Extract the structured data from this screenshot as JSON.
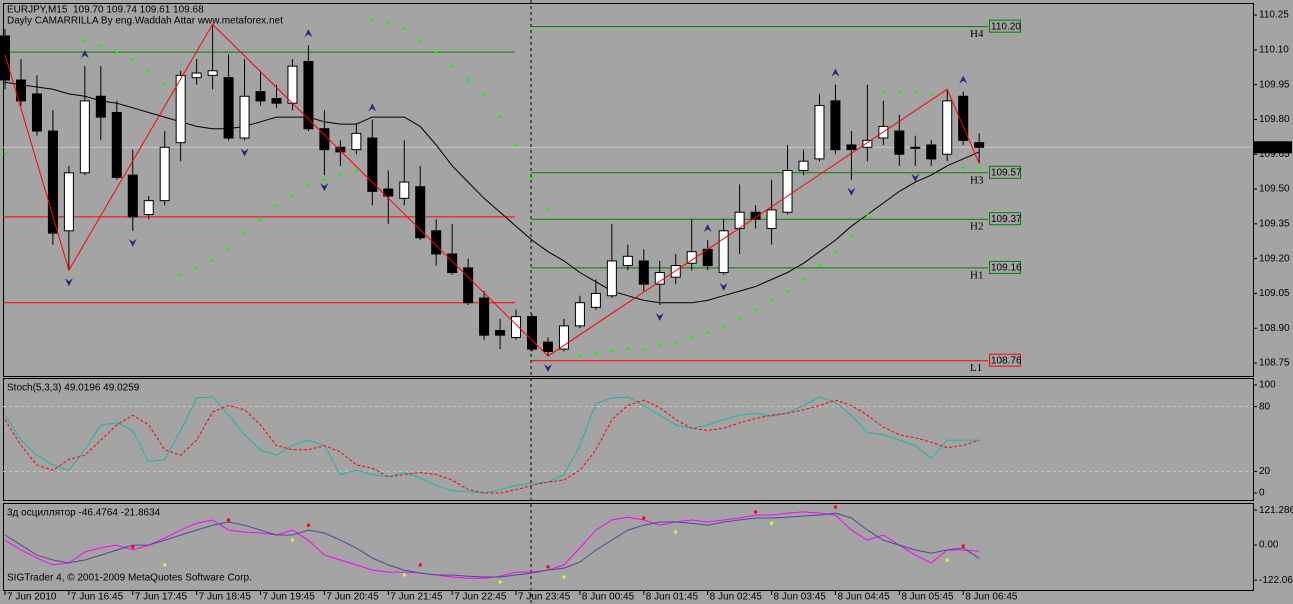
{
  "chart_data": [
    {
      "type": "candlestick",
      "title": "EURJPY,M15  109.70 109.74 109.61 109.68",
      "subtitle": "Dayly CAMARRILLA By eng.Waddah Attar www.metaforex.net",
      "categories": [
        "7 Jun 2010",
        null,
        null,
        null,
        "7 Jun 16:45",
        null,
        null,
        null,
        "7 Jun 17:45",
        null,
        null,
        null,
        "7 Jun 18:45",
        null,
        null,
        null,
        "7 Jun 19:45",
        null,
        null,
        null,
        "7 Jun 20:45",
        null,
        null,
        null,
        "7 Jun 21:45",
        null,
        null,
        null,
        "7 Jun 22:45",
        null,
        null,
        null,
        "7 Jun 23:45",
        null,
        null,
        null,
        "8 Jun 00:45",
        null,
        null,
        null,
        "8 Jun 01:45",
        null,
        null,
        null,
        "8 Jun 02:45",
        null,
        null,
        null,
        "8 Jun 03:45",
        null,
        null,
        null,
        "8 Jun 04:45",
        null,
        null,
        null,
        "8 Jun 05:45",
        null,
        null,
        null,
        "8 Jun 06:45",
        null
      ],
      "open": [
        110.16,
        109.97,
        109.91,
        109.75,
        109.32,
        109.57,
        109.9,
        109.83,
        109.56,
        109.39,
        109.45,
        109.7,
        109.98,
        109.99,
        109.98,
        109.72,
        109.92,
        109.89,
        109.87,
        110.05,
        109.76,
        109.68,
        109.67,
        109.72,
        109.5,
        109.46,
        109.51,
        109.32,
        109.22,
        109.16,
        109.03,
        108.89,
        108.86,
        108.95,
        108.84,
        108.81,
        108.91,
        108.99,
        109.04,
        109.17,
        109.19,
        109.09,
        109.12,
        109.18,
        109.24,
        109.14,
        109.33,
        109.4,
        109.33,
        109.4,
        109.58,
        109.63,
        109.88,
        109.69,
        109.68,
        109.72,
        109.75,
        109.68,
        109.69,
        109.65,
        109.9,
        109.7
      ],
      "high": [
        110.19,
        110.06,
        109.99,
        109.84,
        109.6,
        110.03,
        110.03,
        109.88,
        109.67,
        109.47,
        109.75,
        110.01,
        110.06,
        110.21,
        110.08,
        110.06,
        110.01,
        109.95,
        110.06,
        110.12,
        109.84,
        109.71,
        109.78,
        109.8,
        109.58,
        109.71,
        109.6,
        109.37,
        109.35,
        109.2,
        109.06,
        108.94,
        108.98,
        108.96,
        108.86,
        108.94,
        109.04,
        109.11,
        109.35,
        109.26,
        109.24,
        109.19,
        109.22,
        109.37,
        109.28,
        109.37,
        109.52,
        109.43,
        109.54,
        109.69,
        109.67,
        109.91,
        109.95,
        109.75,
        109.95,
        109.88,
        109.82,
        109.73,
        109.71,
        109.93,
        109.92,
        109.74
      ],
      "low": [
        109.93,
        109.86,
        109.73,
        109.26,
        109.15,
        109.56,
        109.71,
        109.54,
        109.32,
        109.37,
        109.43,
        109.62,
        109.95,
        109.93,
        109.71,
        109.71,
        109.86,
        109.85,
        109.84,
        109.75,
        109.56,
        109.6,
        109.65,
        109.43,
        109.35,
        109.43,
        109.28,
        109.17,
        109.13,
        109.0,
        108.85,
        108.81,
        108.85,
        108.8,
        108.78,
        108.8,
        108.9,
        108.98,
        109.03,
        109.15,
        109.06,
        109.0,
        109.09,
        109.15,
        109.15,
        109.13,
        109.22,
        109.33,
        109.26,
        109.39,
        109.56,
        109.62,
        109.65,
        109.54,
        109.62,
        109.69,
        109.6,
        109.6,
        109.6,
        109.62,
        109.69,
        109.61
      ],
      "close": [
        109.97,
        109.88,
        109.75,
        109.31,
        109.57,
        109.88,
        109.81,
        109.55,
        109.38,
        109.45,
        109.68,
        109.99,
        110.0,
        110.01,
        109.72,
        109.9,
        109.88,
        109.87,
        110.03,
        109.76,
        109.67,
        109.66,
        109.74,
        109.49,
        109.47,
        109.53,
        109.29,
        109.22,
        109.14,
        109.01,
        108.87,
        108.87,
        108.95,
        108.81,
        108.8,
        108.91,
        109.01,
        109.05,
        109.19,
        109.21,
        109.09,
        109.14,
        109.17,
        109.23,
        109.17,
        109.32,
        109.4,
        109.37,
        109.41,
        109.58,
        109.62,
        109.86,
        109.67,
        109.67,
        109.71,
        109.77,
        109.65,
        109.68,
        109.63,
        109.88,
        109.71,
        109.68
      ],
      "ylim": [
        108.694,
        110.302
      ],
      "yticks": [
        110.25,
        {
          "value": 110.1,
          "label": "110.10"
        },
        109.95,
        {
          "value": 109.8,
          "label": "109.80"
        },
        109.65,
        {
          "value": 109.5,
          "label": "109.50"
        },
        109.35,
        {
          "value": 109.2,
          "label": "109.20"
        },
        109.05,
        {
          "value": 108.9,
          "label": "108.90"
        },
        108.75
      ],
      "last_price": 109.68,
      "ma": {
        "color": "#000000",
        "values": [
          109.96,
          109.95,
          109.94,
          109.93,
          109.91,
          109.9,
          109.88,
          109.87,
          109.85,
          109.83,
          109.81,
          109.79,
          109.77,
          109.76,
          109.76,
          109.77,
          109.79,
          109.81,
          109.81,
          109.81,
          109.79,
          109.78,
          109.78,
          109.81,
          109.81,
          109.81,
          109.77,
          109.69,
          109.6,
          109.53,
          109.46,
          109.4,
          109.34,
          109.28,
          109.23,
          109.19,
          109.14,
          109.1,
          109.06,
          109.04,
          109.02,
          109.01,
          109.01,
          109.01,
          109.02,
          109.04,
          109.06,
          109.08,
          109.11,
          109.14,
          109.18,
          109.23,
          109.28,
          109.34,
          109.39,
          109.44,
          109.49,
          109.53,
          109.56,
          109.6,
          109.63,
          109.66
        ]
      },
      "sar": {
        "color": "#00ff00",
        "values": [
          109.65,
          null,
          null,
          null,
          null,
          110.14,
          110.12,
          110.09,
          110.06,
          110.01,
          109.95,
          109.13,
          109.16,
          109.19,
          109.24,
          109.31,
          109.37,
          109.43,
          109.47,
          109.52,
          109.54,
          109.56,
          109.58,
          110.23,
          110.22,
          110.19,
          110.14,
          110.09,
          110.03,
          109.97,
          109.91,
          109.81,
          109.69,
          109.55,
          109.41,
          null,
          108.78,
          108.79,
          108.8,
          108.81,
          108.81,
          108.83,
          108.84,
          108.86,
          108.88,
          108.91,
          108.94,
          108.98,
          109.02,
          109.06,
          109.11,
          109.17,
          109.23,
          109.3,
          109.39,
          109.92,
          109.92,
          109.92,
          109.91,
          null,
          109.59,
          109.59
        ]
      },
      "zigzag": {
        "color": "#ff0000",
        "x": [
          0,
          4,
          13,
          34,
          59,
          61
        ],
        "values": [
          110.08,
          109.15,
          110.21,
          108.78,
          109.93,
          109.61
        ]
      },
      "fractals": {
        "color": "#1c2a78",
        "up": [
          5,
          19,
          23,
          44,
          52,
          60
        ],
        "down": [
          4,
          8,
          15,
          20,
          34,
          41,
          45,
          53,
          57
        ]
      },
      "prev_levels": {
        "values": [
          110.09,
          109.38,
          109.01
        ],
        "colors": [
          "#008000",
          "#ff0000",
          "#ff0000"
        ]
      },
      "levels": {
        "names": [
          "H4",
          "H3",
          "H2",
          "H1",
          "L1"
        ],
        "values": [
          110.2,
          109.57,
          109.37,
          109.16,
          108.76
        ],
        "value_labels": [
          "110.20",
          "109.57",
          "109.37",
          "109.16",
          "108.76"
        ],
        "colors": [
          "#008000",
          "#008000",
          "#008000",
          "#008000",
          "#ff0000"
        ]
      },
      "separator": 33
    },
    {
      "type": "line",
      "title": "Stoch(5,3,3) 49.0196 49.0259",
      "ylim": [
        -6.5,
        106.5
      ],
      "yticks": [
        100,
        80,
        20,
        0
      ],
      "levels": [
        80,
        20
      ],
      "series": [
        {
          "color": "#20b2aa",
          "values": [
            72,
            49,
            35,
            26,
            21,
            40,
            63,
            65,
            58,
            29,
            31,
            58,
            88,
            89,
            72,
            54,
            40,
            35,
            44,
            49,
            44,
            17,
            21,
            17,
            15,
            19,
            14,
            7,
            2,
            1,
            0,
            3,
            7,
            9,
            10,
            17,
            44,
            83,
            88,
            89,
            81,
            72,
            63,
            60,
            63,
            68,
            72,
            74,
            71,
            74,
            81,
            89,
            84,
            72,
            56,
            54,
            49,
            44,
            32,
            49,
            49,
            49
          ]
        },
        {
          "color": "#ff0000",
          "dashed": true,
          "values": [
            68,
            44,
            26,
            21,
            31,
            35,
            49,
            63,
            72,
            63,
            40,
            35,
            49,
            75,
            81,
            77,
            63,
            44,
            40,
            40,
            44,
            38,
            26,
            23,
            15,
            17,
            19,
            17,
            12,
            3,
            0,
            0,
            3,
            7,
            10,
            12,
            21,
            40,
            68,
            81,
            86,
            79,
            68,
            60,
            58,
            60,
            65,
            69,
            72,
            74,
            77,
            81,
            86,
            81,
            72,
            61,
            54,
            51,
            47,
            42,
            44,
            49
          ]
        }
      ]
    },
    {
      "type": "line",
      "title": "3д осциллятор -46.4764 -21.8634",
      "footnote": "SIGTrader 4, © 2001-2009 MetaQuotes Software Corp.",
      "ylim": [
        -156,
        146
      ],
      "yticks": [
        121.2862,
        {
          "value": 0,
          "label": "0.00"
        },
        -122.0685
      ],
      "series": [
        {
          "color": "#ff00ff",
          "values": [
            17,
            -17,
            -45,
            -69,
            -62,
            -24,
            -10,
            0,
            -17,
            0,
            24,
            52,
            76,
            87,
            52,
            45,
            42,
            35,
            52,
            17,
            -35,
            -52,
            -69,
            -87,
            -94,
            -94,
            -97,
            -104,
            -111,
            -115,
            -115,
            -108,
            -94,
            -94,
            -87,
            -69,
            -10,
            52,
            87,
            97,
            87,
            69,
            80,
            87,
            80,
            87,
            94,
            104,
            104,
            111,
            115,
            111,
            104,
            52,
            17,
            35,
            0,
            -35,
            -62,
            -17,
            -17,
            -22
          ]
        },
        {
          "color": "#4b4b8c",
          "values": [
            35,
            0,
            -35,
            -52,
            -62,
            -52,
            -35,
            -17,
            0,
            0,
            17,
            35,
            52,
            69,
            80,
            69,
            52,
            35,
            35,
            52,
            42,
            17,
            -10,
            -45,
            -69,
            -87,
            -97,
            -104,
            -104,
            -108,
            -111,
            -111,
            -104,
            -97,
            -87,
            -80,
            -59,
            -17,
            17,
            52,
            69,
            80,
            80,
            76,
            69,
            80,
            87,
            94,
            94,
            97,
            101,
            104,
            111,
            94,
            52,
            17,
            0,
            -17,
            -28,
            -17,
            -10,
            -46
          ]
        }
      ],
      "markers_high": {
        "color": "#ff0000",
        "x": [
          8,
          14,
          19,
          26,
          34,
          40,
          47,
          52,
          60
        ],
        "values": [
          -7,
          87,
          69,
          -69,
          -76,
          94,
          115,
          132,
          -3
        ]
      },
      "markers_low": {
        "color": "#ccff33",
        "x": [
          10,
          18,
          25,
          31,
          35,
          42,
          48,
          59
        ],
        "values": [
          -69,
          17,
          -104,
          -128,
          -111,
          45,
          76,
          -52
        ]
      }
    }
  ]
}
